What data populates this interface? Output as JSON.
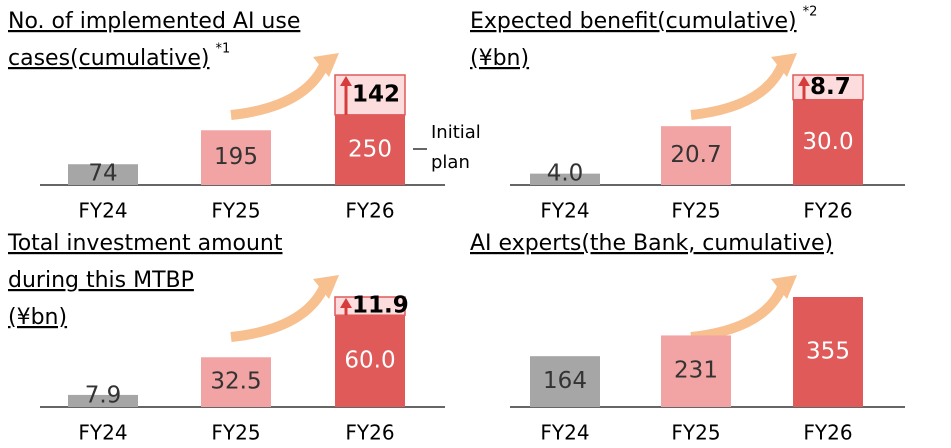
{
  "chart_data": [
    {
      "type": "bar",
      "title_lines": [
        "No. of implemented AI use",
        "cases(cumulative)"
      ],
      "note": "*1",
      "categories": [
        "FY24",
        "FY25",
        "FY26"
      ],
      "values": [
        74,
        195,
        250
      ],
      "colors": [
        "#a6a6a6",
        "#f2a3a3",
        "#e05a5a"
      ],
      "increase": {
        "values": [
          null,
          null,
          142
        ],
        "color": "#fcdcdc"
      },
      "annotation_lines": [
        "Initial",
        "plan"
      ]
    },
    {
      "type": "bar",
      "title_lines": [
        "Expected benefit(cumulative)"
      ],
      "note": "*2",
      "subtitle": "(¥bn)",
      "categories": [
        "FY24",
        "FY25",
        "FY26"
      ],
      "values": [
        4,
        20.7,
        30
      ],
      "value_labels": [
        "4.0",
        "20.7",
        "30.0"
      ],
      "colors": [
        "#a6a6a6",
        "#f2a3a3",
        "#e05a5a"
      ],
      "increase": {
        "values": [
          null,
          null,
          8.7
        ],
        "color": "#fcdcdc"
      }
    },
    {
      "type": "bar",
      "title_lines": [
        "Total investment amount",
        "during this MTBP"
      ],
      "subtitle": "(¥bn)",
      "categories": [
        "FY24",
        "FY25",
        "FY26"
      ],
      "values": [
        7.9,
        32.5,
        60
      ],
      "value_labels": [
        "7.9",
        "32.5",
        "60.0"
      ],
      "colors": [
        "#a6a6a6",
        "#f2a3a3",
        "#e05a5a"
      ],
      "increase": {
        "values": [
          null,
          null,
          11.9
        ],
        "color": "#fcdcdc"
      }
    },
    {
      "type": "bar",
      "title_lines": [
        "AI experts(the Bank, cumulative)"
      ],
      "categories": [
        "FY24",
        "FY25",
        "FY26"
      ],
      "values": [
        164,
        231,
        355
      ],
      "colors": [
        "#a6a6a6",
        "#f2a3a3",
        "#e05a5a"
      ]
    }
  ]
}
